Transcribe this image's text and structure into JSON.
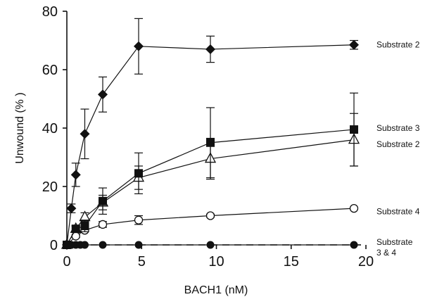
{
  "chart_data": {
    "type": "scatter",
    "xlabel": "BACH1 (nM)",
    "ylabel": "Unwound (% )",
    "xlim": [
      0,
      20
    ],
    "ylim": [
      0,
      80
    ],
    "xticks": [
      "0",
      "5",
      "10",
      "15",
      "20"
    ],
    "yticks": [
      "0",
      "20",
      "40",
      "60",
      "80"
    ],
    "grid": false,
    "series": [
      {
        "name": "Substrate 2",
        "marker": "filled-diamond",
        "x": [
          0,
          0.3,
          0.6,
          1.2,
          2.4,
          4.8,
          9.6,
          19.2
        ],
        "y": [
          0,
          12.5,
          24,
          38,
          51.5,
          68,
          67,
          68.5
        ],
        "err": [
          0,
          1.5,
          4,
          8.5,
          6,
          9.5,
          4.5,
          1.5
        ]
      },
      {
        "name": "Substrate 3",
        "marker": "filled-square",
        "x": [
          0,
          0.6,
          1.2,
          2.4,
          4.8,
          9.6,
          19.2
        ],
        "y": [
          0,
          5.5,
          6.5,
          15,
          24.5,
          35,
          39.5
        ],
        "err": [
          0,
          1,
          2,
          4.5,
          7,
          12,
          12.5
        ]
      },
      {
        "name": "Substrate 2",
        "marker": "open-triangle",
        "x": [
          0,
          0.6,
          1.2,
          2.4,
          4.8,
          9.6,
          19.2
        ],
        "y": [
          0,
          5.5,
          9.5,
          14.5,
          23,
          29.5,
          36
        ],
        "err": [
          0,
          1,
          1.5,
          2.5,
          4,
          7,
          9
        ]
      },
      {
        "name": "Substrate 4",
        "marker": "open-circle",
        "x": [
          0,
          0.6,
          1.2,
          2.4,
          4.8,
          9.6,
          19.2
        ],
        "y": [
          0,
          3,
          5,
          7,
          8.5,
          10,
          12.5
        ],
        "err": [
          0,
          0.5,
          0.5,
          1,
          1.5,
          0.5,
          0.3
        ]
      },
      {
        "name": "Substrate 3 & 4",
        "marker": "filled-circle",
        "x": [
          0,
          0.3,
          0.6,
          0.9,
          1.2,
          2.4,
          4.8,
          9.6,
          19.2
        ],
        "y": [
          0,
          0,
          0,
          0,
          0,
          0,
          0,
          0,
          0
        ],
        "err": [
          0,
          0,
          0,
          0,
          0,
          0,
          0,
          0,
          0
        ]
      }
    ],
    "series_labels": [
      {
        "lines": [
          "Substrate 2"
        ],
        "at_value": 68.5
      },
      {
        "lines": [
          "Substrate 3"
        ],
        "at_value": 40
      },
      {
        "lines": [
          "Substrate 2"
        ],
        "at_value": 34.5
      },
      {
        "lines": [
          "Substrate 4"
        ],
        "at_value": 11.5
      },
      {
        "lines": [
          "Substrate",
          "3 & 4"
        ],
        "at_value": 0
      }
    ]
  }
}
